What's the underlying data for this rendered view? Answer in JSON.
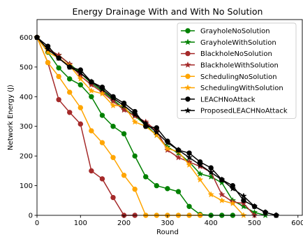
{
  "chart_data": {
    "type": "line",
    "title": "Energy Drainage With and With No Solution",
    "xlabel": "Round",
    "ylabel": "Network Energy (J)",
    "xlim": [
      0,
      610
    ],
    "ylim": [
      0,
      660
    ],
    "xticks": [
      0,
      100,
      200,
      300,
      400,
      500,
      600
    ],
    "yticks": [
      0,
      100,
      200,
      300,
      400,
      500,
      600
    ],
    "grid": false,
    "legend_position": "top-right",
    "series": [
      {
        "name": "GrayholeNoSolution",
        "color": "#008000",
        "marker": "circle",
        "x": [
          0,
          25,
          50,
          75,
          100,
          125,
          150,
          175,
          200,
          225,
          250,
          275,
          300,
          325,
          350,
          375,
          400,
          425,
          450
        ],
        "y": [
          600,
          550,
          497,
          460,
          440,
          400,
          337,
          300,
          275,
          200,
          130,
          100,
          90,
          80,
          30,
          3,
          0,
          0,
          0
        ]
      },
      {
        "name": "GrayholeWithSolution",
        "color": "#008000",
        "marker": "star",
        "x": [
          0,
          25,
          50,
          75,
          100,
          125,
          150,
          175,
          200,
          225,
          250,
          275,
          300,
          325,
          350,
          375,
          400,
          425,
          450,
          475,
          500,
          525
        ],
        "y": [
          600,
          560,
          540,
          510,
          480,
          445,
          420,
          390,
          360,
          335,
          305,
          270,
          230,
          210,
          180,
          140,
          130,
          110,
          50,
          30,
          10,
          0
        ]
      },
      {
        "name": "BlackholeNoSolution",
        "color": "#a52a2a",
        "marker": "circle",
        "x": [
          0,
          25,
          50,
          75,
          100,
          125,
          150,
          175,
          200,
          225
        ],
        "y": [
          600,
          515,
          390,
          347,
          308,
          150,
          123,
          60,
          0,
          0
        ]
      },
      {
        "name": "BlackholeWithSolution",
        "color": "#a52a2a",
        "marker": "star",
        "x": [
          0,
          25,
          50,
          75,
          100,
          125,
          150,
          175,
          200,
          225,
          250,
          275,
          300,
          325,
          350,
          375,
          400,
          425,
          450,
          475,
          500
        ],
        "y": [
          600,
          560,
          540,
          510,
          470,
          440,
          415,
          385,
          355,
          335,
          315,
          285,
          220,
          195,
          180,
          165,
          145,
          70,
          45,
          40,
          0
        ]
      },
      {
        "name": "SchedulingNoSolution",
        "color": "#ffa500",
        "marker": "circle",
        "x": [
          0,
          25,
          50,
          75,
          100,
          125,
          150,
          175,
          200,
          225,
          250,
          275,
          300,
          325,
          350,
          375
        ],
        "y": [
          600,
          515,
          468,
          415,
          363,
          285,
          245,
          195,
          135,
          88,
          0,
          0,
          0,
          0,
          0,
          0
        ]
      },
      {
        "name": "SchedulingWithSolution",
        "color": "#ffa500",
        "marker": "star",
        "x": [
          0,
          25,
          50,
          75,
          100,
          125,
          150,
          175,
          200,
          225,
          250,
          275,
          300,
          325,
          350,
          375,
          400,
          425,
          450,
          475
        ],
        "y": [
          600,
          550,
          530,
          505,
          460,
          420,
          410,
          370,
          370,
          315,
          300,
          270,
          225,
          215,
          170,
          120,
          70,
          50,
          40,
          0
        ]
      },
      {
        "name": "LEACHNoAttack",
        "color": "#000000",
        "marker": "circle",
        "x": [
          0,
          25,
          50,
          75,
          100,
          125,
          150,
          175,
          200,
          225,
          250,
          275,
          300,
          325,
          350,
          375,
          400,
          425,
          450,
          475,
          500,
          525,
          550
        ],
        "y": [
          600,
          570,
          530,
          500,
          490,
          450,
          432,
          400,
          378,
          350,
          300,
          295,
          250,
          220,
          210,
          180,
          160,
          120,
          100,
          50,
          30,
          10,
          0
        ]
      },
      {
        "name": "ProposedLEACHNoAttack",
        "color": "#000000",
        "marker": "star",
        "x": [
          0,
          25,
          50,
          75,
          100,
          125,
          150,
          175,
          200,
          225,
          250,
          275,
          300,
          325,
          350,
          375,
          400,
          425,
          450,
          475,
          500,
          525,
          550
        ],
        "y": [
          600,
          560,
          530,
          500,
          480,
          450,
          425,
          395,
          370,
          340,
          310,
          280,
          245,
          220,
          195,
          170,
          145,
          120,
          90,
          65,
          30,
          10,
          0
        ]
      }
    ]
  }
}
